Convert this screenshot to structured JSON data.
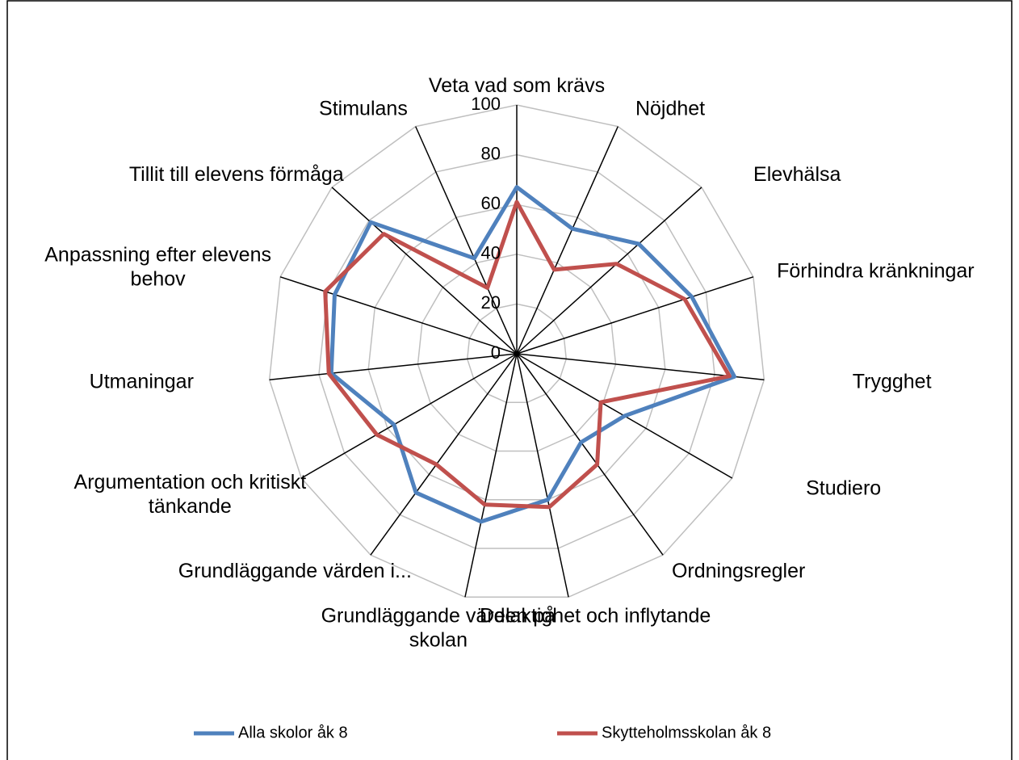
{
  "chart_data": {
    "type": "radar",
    "categories": [
      "Veta vad som krävs",
      "Nöjdhet",
      "Elevhälsa",
      "Förhindra kränkningar",
      "Trygghet",
      "Studiero",
      "Ordningsregler",
      "Delaktighet och inflytande",
      "Grundläggande värden på skolan",
      "Grundläggande värden i...",
      "Argumentation och kritiskt tänkande",
      "Utmaningar",
      "Anpassning efter elevens behov",
      "Tillit till elevens förmåga",
      "Stimulans"
    ],
    "series": [
      {
        "name": "Alla skolor åk 8",
        "color": "#4f81bd",
        "values": [
          67,
          55,
          66,
          74,
          88,
          50,
          44,
          60,
          69,
          69,
          57,
          75,
          77,
          79,
          42
        ]
      },
      {
        "name": "Skytteholmsskolan åk 8",
        "color": "#c0504d",
        "values": [
          61,
          37,
          54,
          71,
          86,
          39,
          55,
          63,
          62,
          55,
          65,
          76,
          81,
          72,
          29
        ]
      }
    ],
    "ylim": [
      0,
      100
    ],
    "yticks": [
      0,
      20,
      40,
      60,
      80,
      100
    ],
    "grid": true,
    "legend": "bottom"
  }
}
